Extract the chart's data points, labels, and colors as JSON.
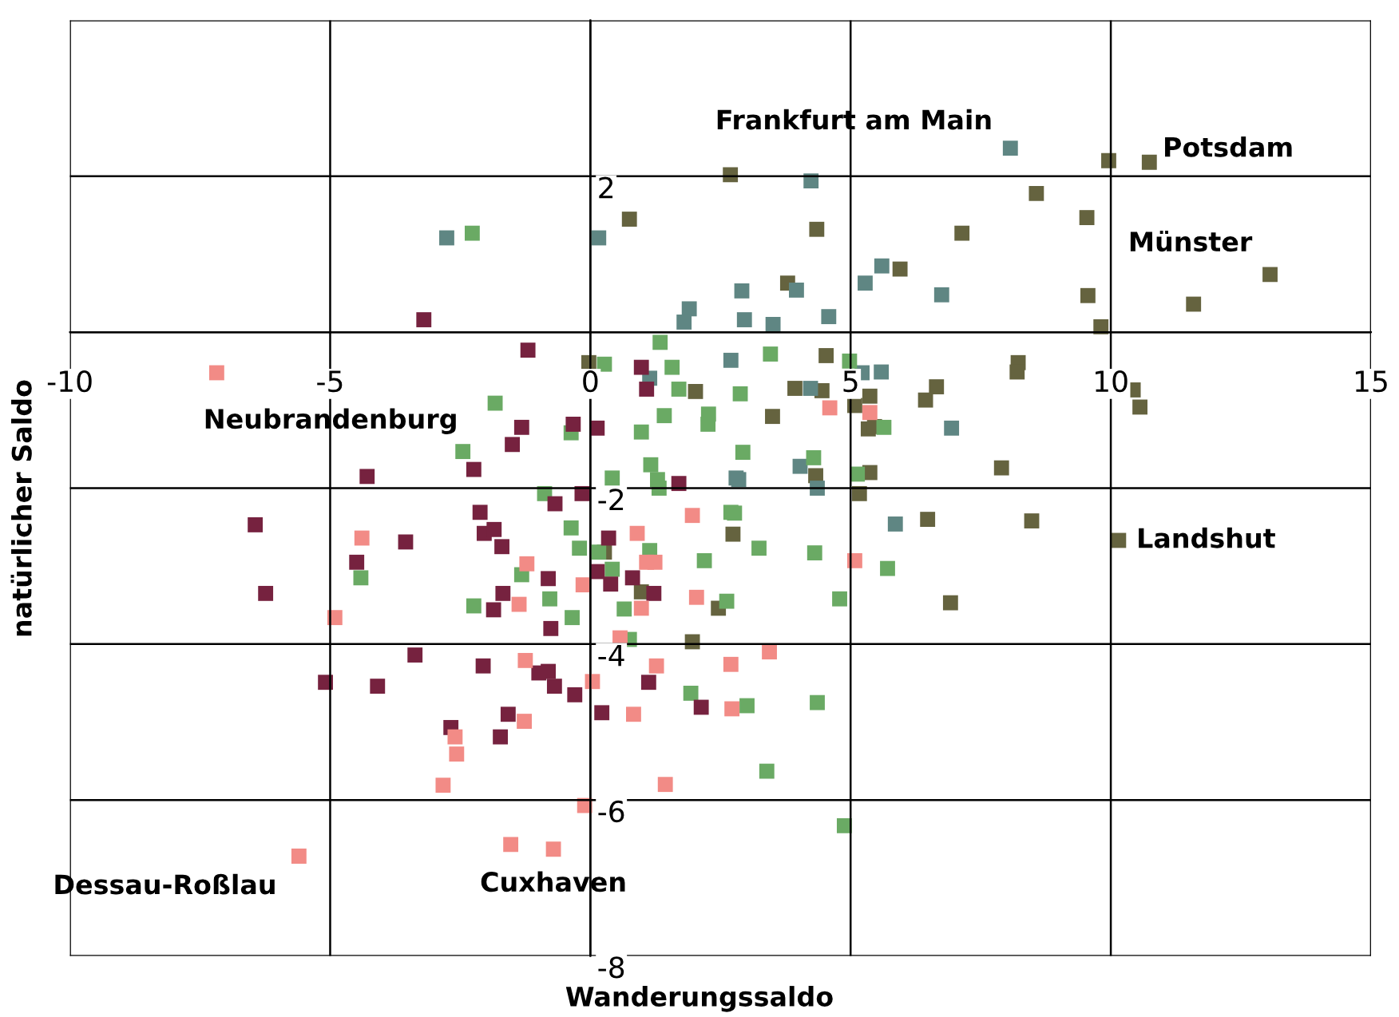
{
  "chart_data": {
    "type": "scatter",
    "xlabel": "Wanderungssaldo",
    "ylabel": "natürlicher Saldo",
    "xlim": [
      -10,
      15
    ],
    "ylim": [
      -8,
      4
    ],
    "xticks": [
      -10,
      -5,
      0,
      5,
      10,
      15
    ],
    "yticks": [
      {
        "value": -8,
        "label": "-8"
      },
      {
        "value": -6,
        "label": "-6"
      },
      {
        "value": -4,
        "label": "-4"
      },
      {
        "value": -2,
        "label": "-2"
      },
      {
        "value": 0,
        "label": null
      },
      {
        "value": 2,
        "label": "2"
      },
      {
        "value": 4,
        "label": null
      }
    ],
    "grid": true,
    "marker": "square",
    "legend": false,
    "series": [
      {
        "color": "#65633f",
        "x": [
          2.69,
          4.35,
          9.96,
          10.74,
          8.57,
          9.54,
          7.14,
          5.95,
          9.56,
          11.59,
          13.06,
          9.81,
          3.79,
          4.53,
          2.02,
          3.93,
          4.45,
          3.5,
          5.37,
          5.08,
          6.65,
          6.44,
          8.22,
          8.2,
          10.43,
          10.56,
          5.34,
          5.46,
          5.37,
          7.9,
          5.17,
          6.48,
          8.48,
          10.15,
          2.74,
          4.33,
          0.75,
          -0.03,
          0.27,
          0.98,
          2.46,
          1.96,
          6.92
        ],
        "values": [
          2.02,
          1.32,
          2.2,
          2.18,
          1.78,
          1.47,
          1.27,
          0.81,
          0.47,
          0.36,
          0.74,
          0.07,
          0.63,
          -0.3,
          -0.76,
          -0.72,
          -0.75,
          -1.08,
          -0.82,
          -0.94,
          -0.7,
          -0.87,
          -0.39,
          -0.51,
          -0.74,
          -0.96,
          -1.24,
          -1.21,
          -1.8,
          -1.74,
          -2.07,
          -2.4,
          -2.42,
          -2.67,
          -2.59,
          -1.84,
          1.45,
          -0.39,
          -2.82,
          -3.33,
          -3.54,
          -3.97,
          -3.47
        ]
      },
      {
        "color": "#5f8683",
        "x": [
          -2.76,
          0.16,
          1.9,
          1.8,
          2.7,
          1.14,
          2.8,
          8.07,
          4.24,
          2.91,
          3.96,
          5.6,
          5.28,
          6.75,
          2.96,
          3.51,
          4.58,
          5.22,
          5.59,
          4.23,
          6.94,
          4.03,
          2.85,
          4.36,
          5.86
        ],
        "values": [
          1.21,
          1.21,
          0.3,
          0.13,
          -0.36,
          -0.59,
          -1.87,
          2.36,
          1.94,
          0.53,
          0.54,
          0.85,
          0.63,
          0.48,
          0.16,
          0.1,
          0.2,
          -0.52,
          -0.51,
          -0.72,
          -1.23,
          -1.72,
          -1.89,
          -2.0,
          -2.46
        ]
      },
      {
        "color": "#6aaa64",
        "x": [
          -2.27,
          1.34,
          0.27,
          1.57,
          1.7,
          -1.83,
          1.42,
          0.98,
          2.27,
          2.26,
          -0.37,
          -2.45,
          0.42,
          1.16,
          1.29,
          1.32,
          -0.88,
          -0.37,
          0.42,
          2.7,
          2.88,
          3.46,
          4.98,
          2.93,
          4.29,
          5.64,
          5.13,
          2.77,
          3.24,
          2.19,
          4.31,
          5.71,
          -0.21,
          0.16,
          -1.32,
          -0.78,
          -2.24,
          -0.35,
          -4.41,
          0.65,
          1.14,
          0.75,
          1.93,
          2.62,
          4.79,
          3.01,
          4.36,
          3.39,
          4.88
        ],
        "values": [
          1.27,
          -0.13,
          -0.41,
          -0.45,
          -0.73,
          -0.91,
          -1.07,
          -1.28,
          -1.05,
          -1.18,
          -1.29,
          -1.53,
          -1.87,
          -1.7,
          -1.89,
          -2.0,
          -2.07,
          -2.51,
          -3.04,
          -2.31,
          -0.79,
          -0.28,
          -0.37,
          -1.54,
          -1.61,
          -1.22,
          -1.82,
          -2.32,
          -2.77,
          -2.93,
          -2.83,
          -3.03,
          -2.77,
          -2.82,
          -3.11,
          -3.42,
          -3.51,
          -3.66,
          -3.15,
          -3.55,
          -2.8,
          -3.94,
          -4.63,
          -3.45,
          -3.42,
          -4.79,
          -4.75,
          -5.63,
          -6.33
        ]
      },
      {
        "color": "#76223f",
        "x": [
          -3.2,
          -1.2,
          0.98,
          1.08,
          -1.32,
          -0.33,
          0.13,
          -1.5,
          -4.29,
          -2.24,
          1.7,
          -0.16,
          -0.68,
          -2.12,
          -6.44,
          -2.04,
          -1.85,
          -1.7,
          -3.55,
          -4.49,
          0.35,
          -6.24,
          -0.81,
          0.13,
          0.39,
          0.81,
          1.22,
          -1.68,
          -1.86,
          -0.76,
          -3.37,
          -2.06,
          -0.99,
          -0.81,
          -0.69,
          -0.3,
          -5.09,
          -4.09,
          1.12,
          2.13,
          0.22,
          -1.58,
          -2.68,
          -1.73
        ],
        "values": [
          0.16,
          -0.23,
          -0.45,
          -0.73,
          -1.22,
          -1.18,
          -1.23,
          -1.44,
          -1.85,
          -1.76,
          -1.94,
          -2.07,
          -2.2,
          -2.31,
          -2.47,
          -2.58,
          -2.53,
          -2.75,
          -2.69,
          -2.95,
          -2.64,
          -3.35,
          -3.16,
          -3.07,
          -3.23,
          -3.15,
          -3.35,
          -3.35,
          -3.56,
          -3.8,
          -4.14,
          -4.28,
          -4.37,
          -4.35,
          -4.54,
          -4.65,
          -4.49,
          -4.54,
          -4.49,
          -4.81,
          -4.88,
          -4.9,
          -5.07,
          -5.19
        ]
      },
      {
        "color": "#f28b86",
        "x": [
          -7.18,
          1.96,
          0.9,
          -4.39,
          -1.22,
          1.08,
          1.24,
          4.6,
          5.37,
          5.08,
          -4.91,
          -1.37,
          -0.14,
          0.98,
          0.57,
          2.04,
          -1.25,
          0.04,
          1.27,
          -1.27,
          0.83,
          -2.6,
          -2.57,
          -2.83,
          1.44,
          -0.11,
          -1.53,
          -0.71,
          -5.6,
          2.7,
          3.44,
          2.72
        ],
        "values": [
          -0.52,
          -2.35,
          -2.58,
          -2.64,
          -2.97,
          -2.95,
          -2.95,
          -0.97,
          -1.03,
          -2.93,
          -3.66,
          -3.49,
          -3.24,
          -3.54,
          -3.92,
          -3.4,
          -4.21,
          -4.48,
          -4.28,
          -4.99,
          -4.9,
          -5.19,
          -5.41,
          -5.81,
          -5.8,
          -6.07,
          -6.57,
          -6.63,
          -6.72,
          -4.26,
          -4.1,
          -4.83
        ]
      }
    ],
    "annotations": [
      {
        "text": "Frankfurt am Main",
        "x": 8.07,
        "y": 2.36
      },
      {
        "text": "Potsdam",
        "x": 10.74,
        "y": 2.18
      },
      {
        "text": "Münster",
        "x": 13.06,
        "y": 0.74
      },
      {
        "text": "Neubrandenburg",
        "x": -7.18,
        "y": -0.52
      },
      {
        "text": "Landshut",
        "x": 10.15,
        "y": -2.67
      },
      {
        "text": "Dessau-Roßlau",
        "x": -5.6,
        "y": -6.72
      },
      {
        "text": "Cuxhaven",
        "x": -0.71,
        "y": -6.63
      }
    ]
  }
}
